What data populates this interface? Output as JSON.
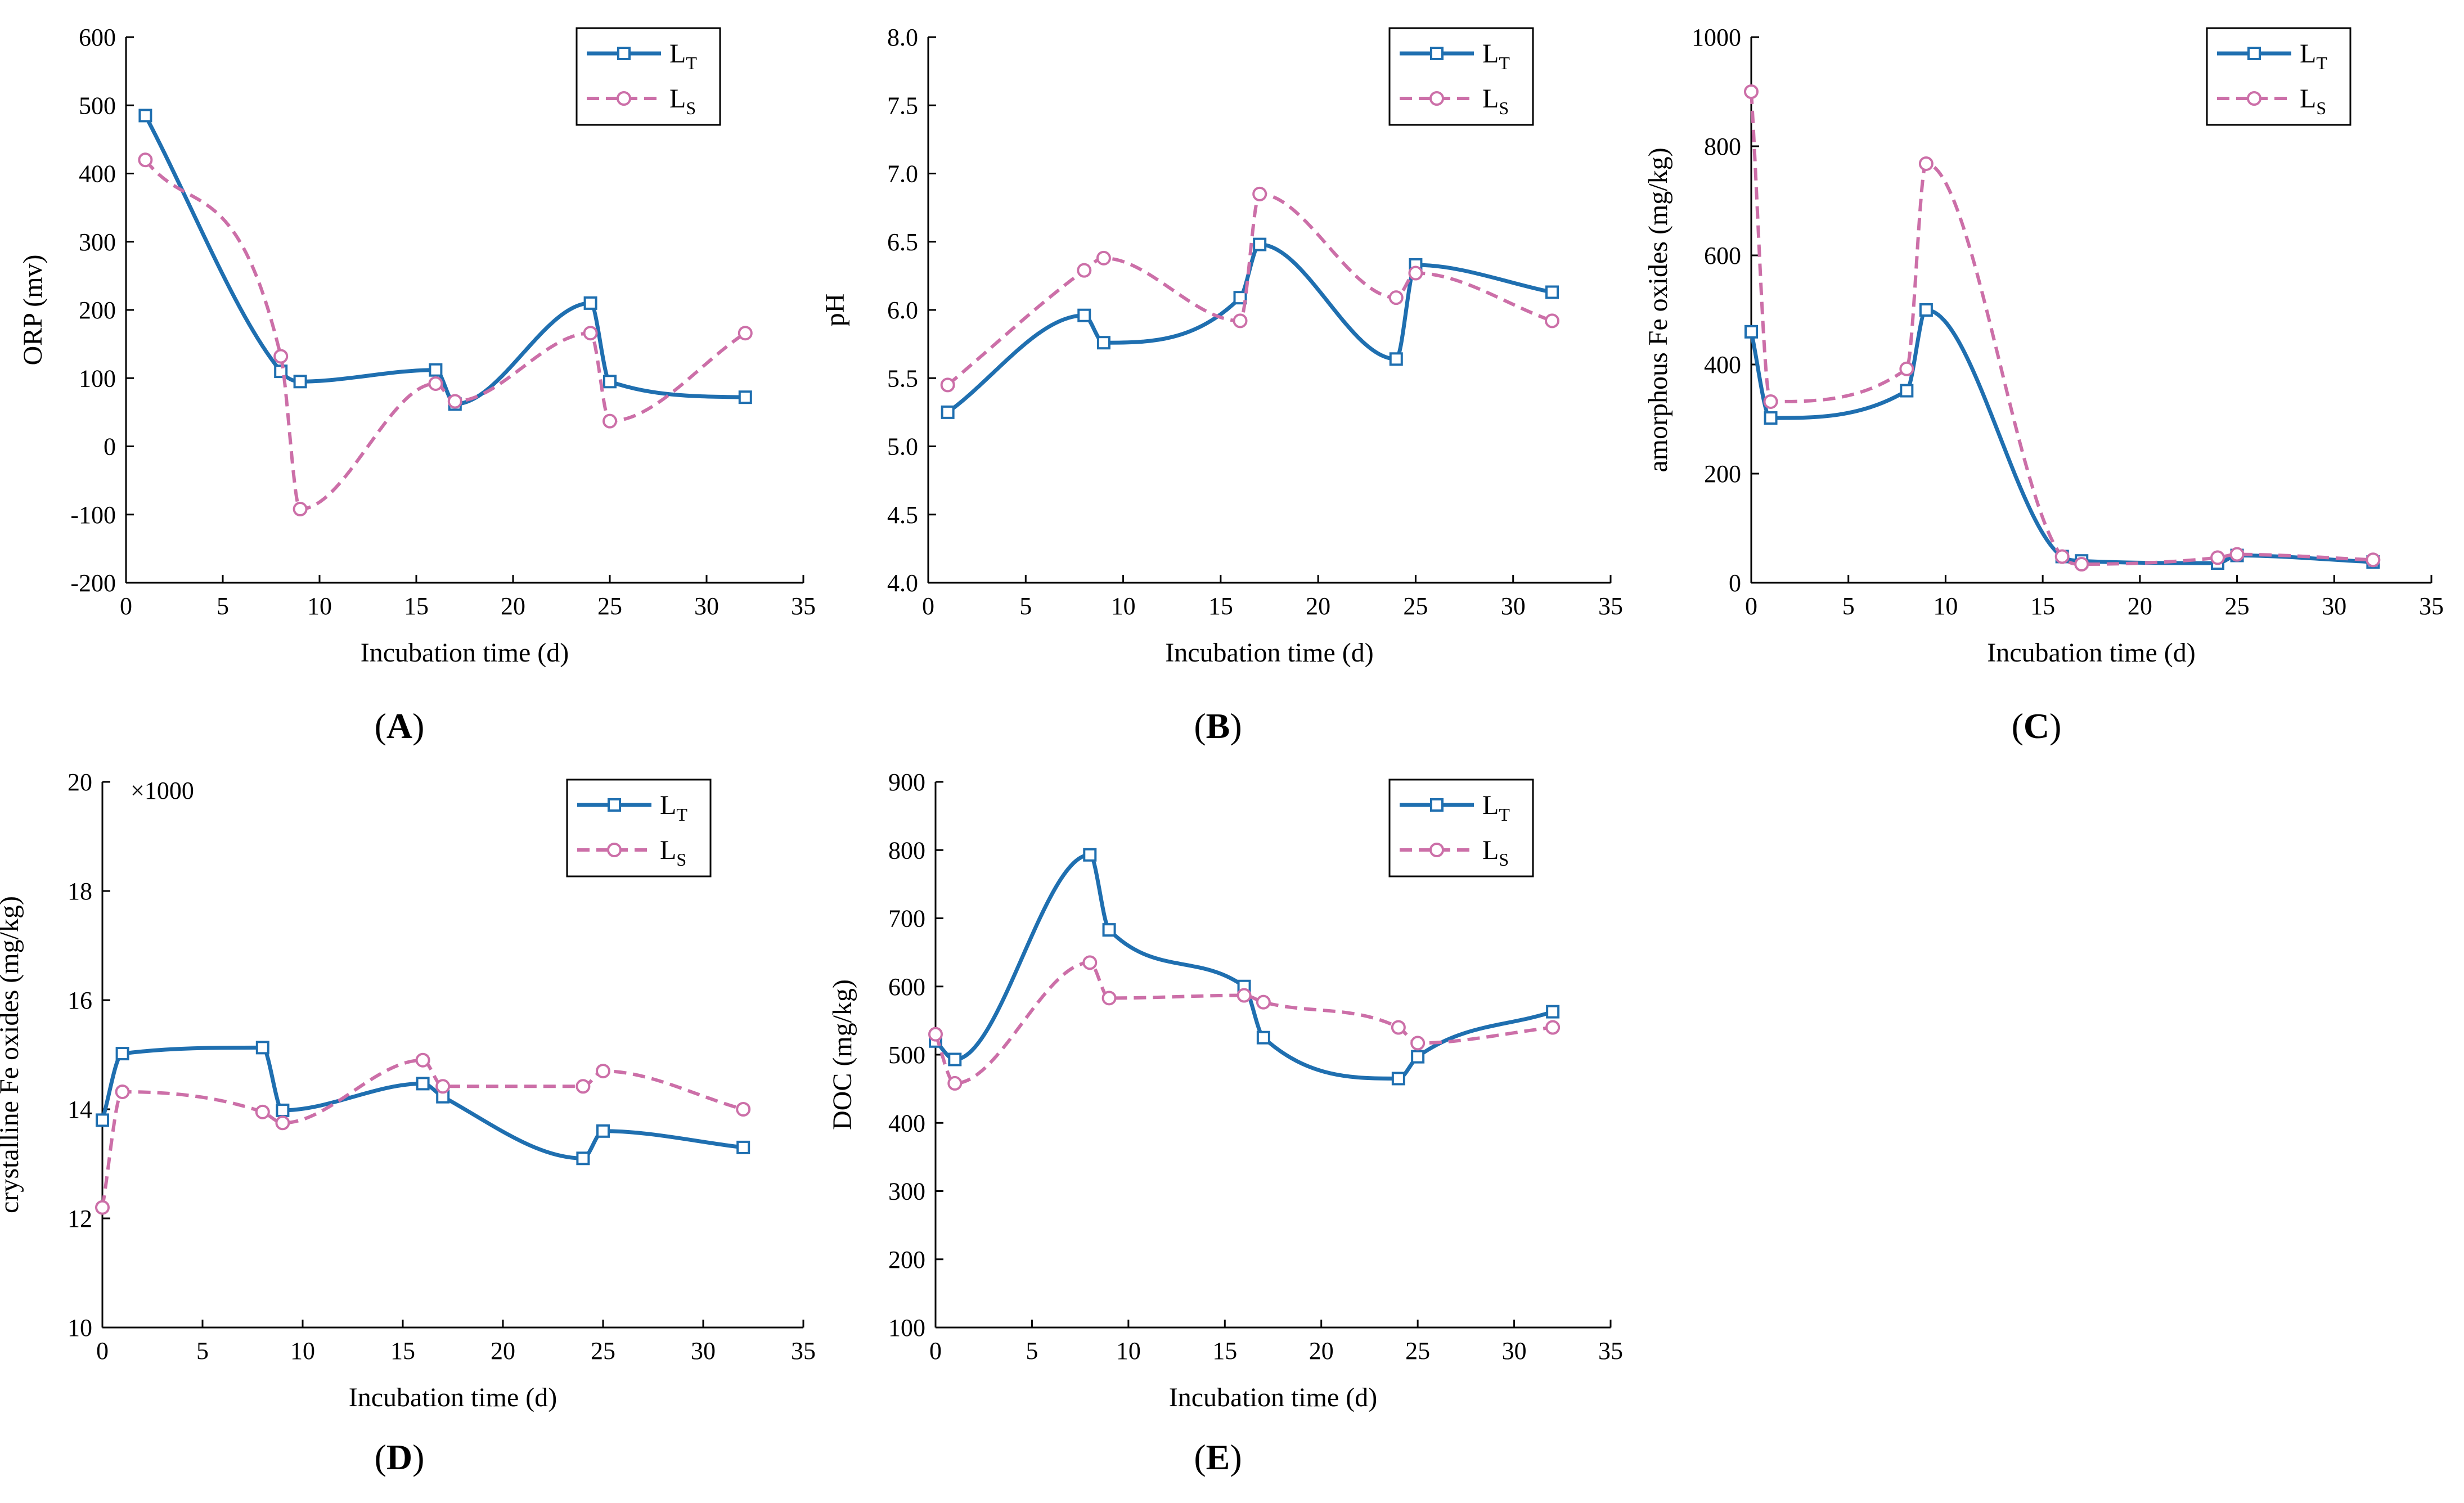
{
  "colors": {
    "LT": "#1f6fb0",
    "LS": "#cc6fa8",
    "axis": "#000000"
  },
  "chart_data": [
    {
      "id": "A",
      "type": "line",
      "panel_label": "A",
      "xlabel": "Incubation time (d)",
      "ylabel": "ORP (mv)",
      "xlim": [
        0,
        35
      ],
      "ylim": [
        -200,
        600
      ],
      "xticks": [
        0,
        5,
        10,
        15,
        20,
        25,
        30,
        35
      ],
      "yticks": [
        -200,
        -100,
        0,
        100,
        200,
        300,
        400,
        500,
        600
      ],
      "multiplier": "",
      "legend": {
        "position": "top-right",
        "entries": [
          {
            "main": "L",
            "sub": "T"
          },
          {
            "main": "L",
            "sub": "S"
          }
        ]
      },
      "series": [
        {
          "name": "LT",
          "style": "solid",
          "marker": "square",
          "x": [
            1,
            8,
            9,
            16,
            17,
            24,
            25,
            32
          ],
          "y": [
            485,
            110,
            95,
            112,
            62,
            210,
            95,
            72
          ]
        },
        {
          "name": "LS",
          "style": "dashed",
          "marker": "circle",
          "x": [
            1,
            8,
            9,
            16,
            17,
            24,
            25,
            32
          ],
          "y": [
            420,
            132,
            -92,
            92,
            66,
            166,
            37,
            166
          ]
        }
      ]
    },
    {
      "id": "B",
      "type": "line",
      "panel_label": "B",
      "xlabel": "Incubation time (d)",
      "ylabel": "pH",
      "xlim": [
        0,
        35
      ],
      "ylim": [
        4.0,
        8.0
      ],
      "xticks": [
        0,
        5,
        10,
        15,
        20,
        25,
        30,
        35
      ],
      "yticks": [
        4.0,
        4.5,
        5.0,
        5.5,
        6.0,
        6.5,
        7.0,
        7.5,
        8.0
      ],
      "multiplier": "",
      "legend": {
        "position": "top-right",
        "entries": [
          {
            "main": "L",
            "sub": "T"
          },
          {
            "main": "L",
            "sub": "S"
          }
        ]
      },
      "series": [
        {
          "name": "LT",
          "style": "solid",
          "marker": "square",
          "x": [
            1,
            8,
            9,
            16,
            17,
            24,
            25,
            32
          ],
          "y": [
            5.25,
            5.96,
            5.76,
            6.09,
            6.48,
            5.64,
            6.33,
            6.13
          ]
        },
        {
          "name": "LS",
          "style": "dashed",
          "marker": "circle",
          "x": [
            1,
            8,
            9,
            16,
            17,
            24,
            25,
            32
          ],
          "y": [
            5.45,
            6.29,
            6.38,
            5.92,
            6.85,
            6.09,
            6.27,
            5.92
          ]
        }
      ]
    },
    {
      "id": "C",
      "type": "line",
      "panel_label": "C",
      "xlabel": "Incubation time (d)",
      "ylabel": "amorphous Fe oxides (mg/kg)",
      "xlim": [
        0,
        35
      ],
      "ylim": [
        0,
        1000
      ],
      "xticks": [
        0,
        5,
        10,
        15,
        20,
        25,
        30,
        35
      ],
      "yticks": [
        0,
        200,
        400,
        600,
        800,
        1000
      ],
      "multiplier": "",
      "legend": {
        "position": "top-right",
        "entries": [
          {
            "main": "L",
            "sub": "T"
          },
          {
            "main": "L",
            "sub": "S"
          }
        ]
      },
      "series": [
        {
          "name": "LT",
          "style": "solid",
          "marker": "square",
          "x": [
            0,
            1,
            8,
            9,
            16,
            17,
            24,
            25,
            32
          ],
          "y": [
            460,
            302,
            352,
            500,
            48,
            40,
            36,
            50,
            38
          ]
        },
        {
          "name": "LS",
          "style": "dashed",
          "marker": "circle",
          "x": [
            0,
            1,
            8,
            9,
            16,
            17,
            24,
            25,
            32
          ],
          "y": [
            900,
            332,
            392,
            768,
            48,
            34,
            46,
            52,
            42
          ]
        }
      ]
    },
    {
      "id": "D",
      "type": "line",
      "panel_label": "D",
      "xlabel": "Incubation time (d)",
      "ylabel": "crystalline Fe oxides (mg/kg)",
      "xlim": [
        0,
        35
      ],
      "ylim": [
        10,
        20
      ],
      "xticks": [
        0,
        5,
        10,
        15,
        20,
        25,
        30,
        35
      ],
      "yticks": [
        10,
        12,
        14,
        16,
        18,
        20
      ],
      "multiplier": "×1000",
      "legend": {
        "position": "top-right",
        "entries": [
          {
            "main": "L",
            "sub": "T"
          },
          {
            "main": "L",
            "sub": "S"
          }
        ]
      },
      "series": [
        {
          "name": "LT",
          "style": "solid",
          "marker": "square",
          "x": [
            0,
            1,
            8,
            9,
            16,
            17,
            24,
            25,
            32
          ],
          "y": [
            13.8,
            15.02,
            15.13,
            13.98,
            14.47,
            14.23,
            13.1,
            13.6,
            13.3
          ]
        },
        {
          "name": "LS",
          "style": "dashed",
          "marker": "circle",
          "x": [
            0,
            1,
            8,
            9,
            16,
            17,
            24,
            25,
            32
          ],
          "y": [
            12.2,
            14.32,
            13.95,
            13.75,
            14.9,
            14.42,
            14.42,
            14.7,
            14.0
          ]
        }
      ]
    },
    {
      "id": "E",
      "type": "line",
      "panel_label": "E",
      "xlabel": "Incubation time (d)",
      "ylabel": "DOC (mg/kg)",
      "xlim": [
        0,
        35
      ],
      "ylim": [
        100,
        900
      ],
      "xticks": [
        0,
        5,
        10,
        15,
        20,
        25,
        30,
        35
      ],
      "yticks": [
        100,
        200,
        300,
        400,
        500,
        600,
        700,
        800,
        900
      ],
      "multiplier": "",
      "legend": {
        "position": "top-right",
        "entries": [
          {
            "main": "L",
            "sub": "T"
          },
          {
            "main": "L",
            "sub": "S"
          }
        ]
      },
      "series": [
        {
          "name": "LT",
          "style": "solid",
          "marker": "square",
          "x": [
            0,
            1,
            8,
            9,
            16,
            17,
            24,
            25,
            32
          ],
          "y": [
            520,
            493,
            793,
            683,
            600,
            525,
            465,
            497,
            563
          ]
        },
        {
          "name": "LS",
          "style": "dashed",
          "marker": "circle",
          "x": [
            0,
            1,
            8,
            9,
            16,
            17,
            24,
            25,
            32
          ],
          "y": [
            530,
            458,
            635,
            583,
            587,
            577,
            540,
            517,
            540
          ]
        }
      ]
    }
  ]
}
